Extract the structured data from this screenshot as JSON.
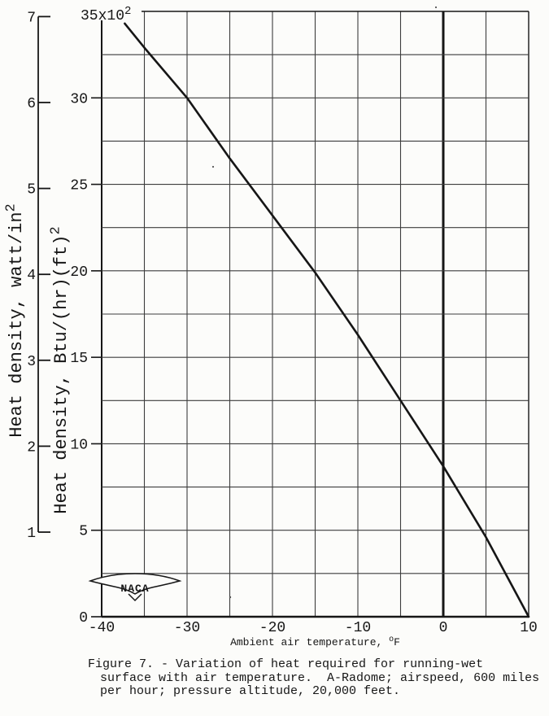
{
  "figure": {
    "caption_lines": [
      "Figure 7. - Variation of heat required for running-wet",
      "surface with air temperature.  A-Radome; airspeed, 600 miles",
      "per hour; pressure altitude, 20,000 feet."
    ],
    "logo_text": "NACA"
  },
  "chart_data": {
    "type": "line",
    "title": "",
    "xlabel": "Ambient air temperature, ^oF",
    "ylabel_outer": "Heat density, watt/in^2",
    "ylabel_inner": "Heat density, Btu/(hr)(ft)^2",
    "top_scale_label": "35x10^2",
    "x_range": [
      -40,
      10
    ],
    "x_grid_step": 5,
    "x_tick_values": [
      -40,
      -30,
      -20,
      -10,
      0,
      10
    ],
    "x_tick_labels": [
      "-40",
      "-30",
      "-20",
      "-10",
      "0",
      "10"
    ],
    "x_zero_line_emphasis": true,
    "y_range_btu": [
      0,
      3500
    ],
    "y_grid_step_btu": 250,
    "y_tick_values_btu": [
      0,
      500,
      1000,
      1500,
      2000,
      2500,
      3000
    ],
    "y_tick_labels_btu": [
      "0",
      "5",
      "10",
      "15",
      "20",
      "25",
      "30"
    ],
    "y_scale_note": "Btu axis labels are x10^2; top gridline = 35x10^2",
    "watt_axis": {
      "tick_values": [
        1,
        2,
        3,
        4,
        5,
        6,
        7
      ],
      "btu_per_watt_in2": 491.3
    },
    "grid": true,
    "legend": "none",
    "series": [
      {
        "name": "heat-required-running-wet",
        "points_temp_F_vs_btu_hr_ft2": [
          [
            -37.3,
            3430
          ],
          [
            -35,
            3290
          ],
          [
            -30,
            3000
          ],
          [
            -25,
            2650
          ],
          [
            -20,
            2320
          ],
          [
            -15,
            1990
          ],
          [
            -10,
            1630
          ],
          [
            -5,
            1250
          ],
          [
            0,
            870
          ],
          [
            5,
            460
          ],
          [
            10,
            0
          ]
        ]
      }
    ]
  },
  "colors": {
    "ink": "#161616",
    "grid": "#3d3d3d",
    "paper": "#fcfcfa"
  }
}
